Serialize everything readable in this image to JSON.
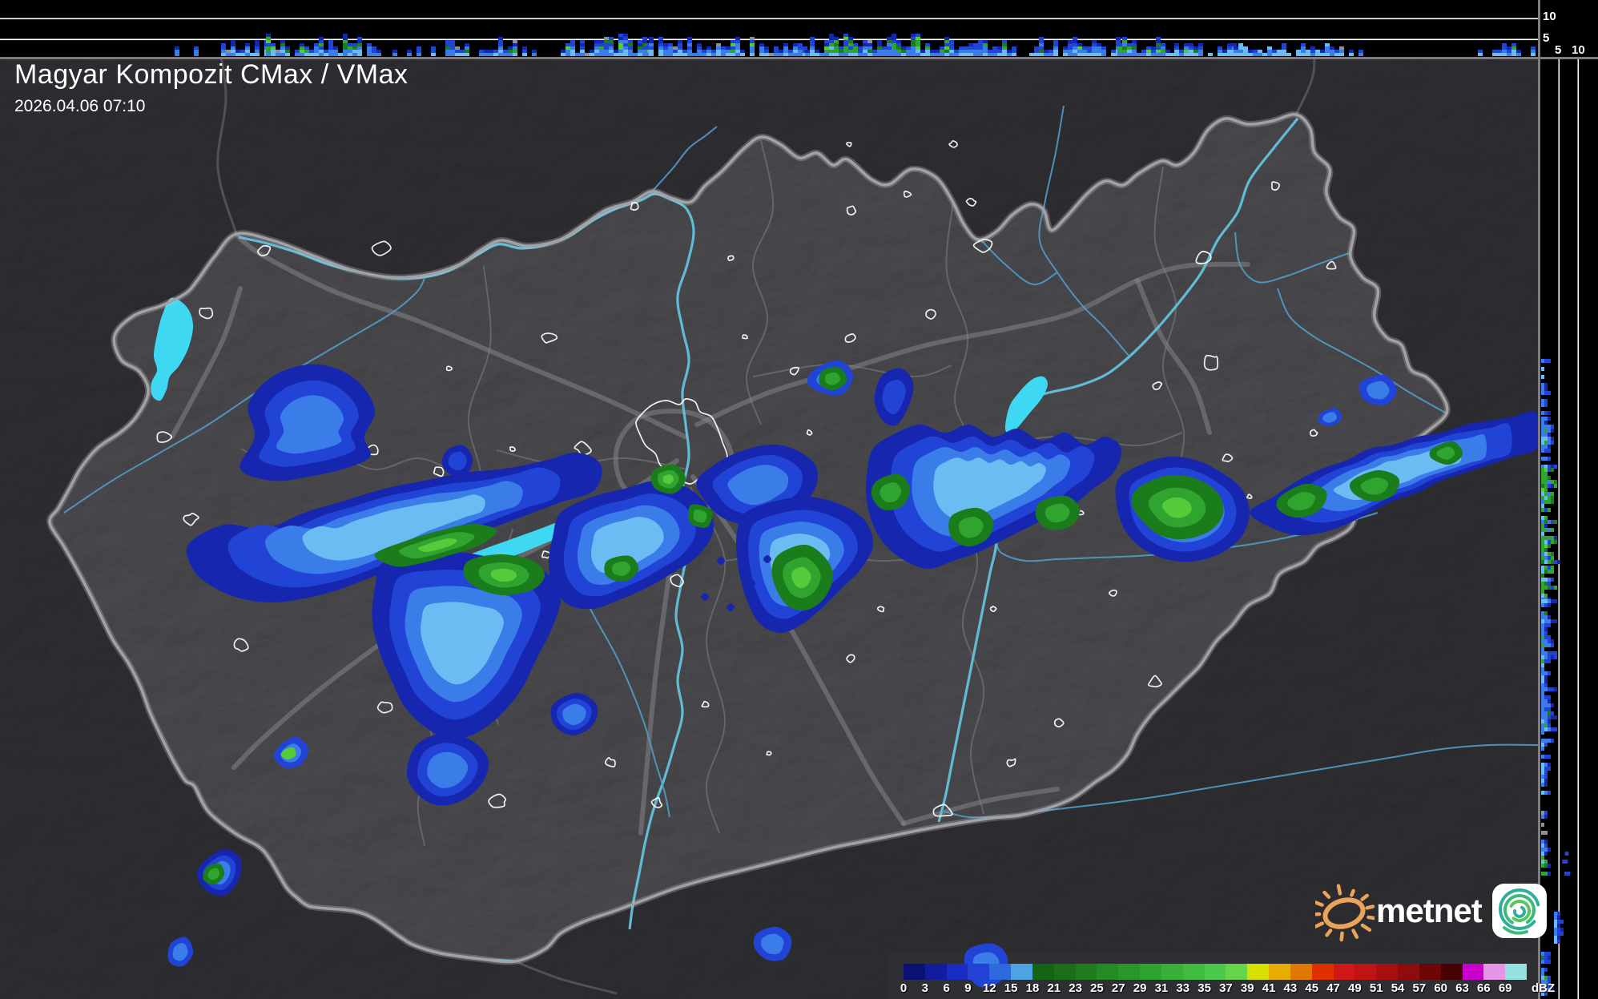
{
  "header": {
    "title": "Magyar Kompozit CMax / VMax",
    "timestamp": "2026.04.06 07:10"
  },
  "profiles": {
    "top_axis_labels": [
      "10",
      "5"
    ],
    "right_axis_labels": [
      "5",
      "10"
    ]
  },
  "colorbar": {
    "unit": "dBZ",
    "ticks": [
      "0",
      "3",
      "6",
      "9",
      "12",
      "15",
      "18",
      "21",
      "23",
      "25",
      "27",
      "29",
      "31",
      "33",
      "35",
      "37",
      "39",
      "41",
      "43",
      "45",
      "47",
      "49",
      "51",
      "54",
      "57",
      "60",
      "63",
      "66",
      "69"
    ],
    "colors": [
      "#0b1174",
      "#121c9c",
      "#1a2cc2",
      "#2342d4",
      "#2e6ade",
      "#4da3e4",
      "#146414",
      "#1a701a",
      "#1f7d1f",
      "#248a24",
      "#299629",
      "#2fa32f",
      "#36b036",
      "#3fbc3f",
      "#4cc84c",
      "#66d44a",
      "#d8e000",
      "#e6ac00",
      "#e07800",
      "#e03000",
      "#d01818",
      "#c01414",
      "#a81010",
      "#8e0c0c",
      "#6e0606",
      "#460202",
      "#cc00cc",
      "#e694e6",
      "#96e2e2"
    ]
  },
  "logo": {
    "wordmark": "metnet",
    "icons": [
      "sun-icon",
      "swirl-app-icon"
    ]
  },
  "colors": {
    "lake": "#3fd8f2",
    "river": "#4f9cc8",
    "danube": "#62c2dc",
    "country_border": "#a2a2a6",
    "county_border": "#6b6b6f",
    "road": "#8a8a8e",
    "city_outline": "#ffffff",
    "panel": "#2e2f34",
    "echo_navy": "#1626ae",
    "echo_blue": "#2144d6",
    "echo_mid": "#3a7ce8",
    "echo_sky": "#6cbcf4",
    "echo_green_dark": "#1b7c1b",
    "echo_green": "#2fa42f",
    "echo_green_bright": "#55cb3a"
  }
}
